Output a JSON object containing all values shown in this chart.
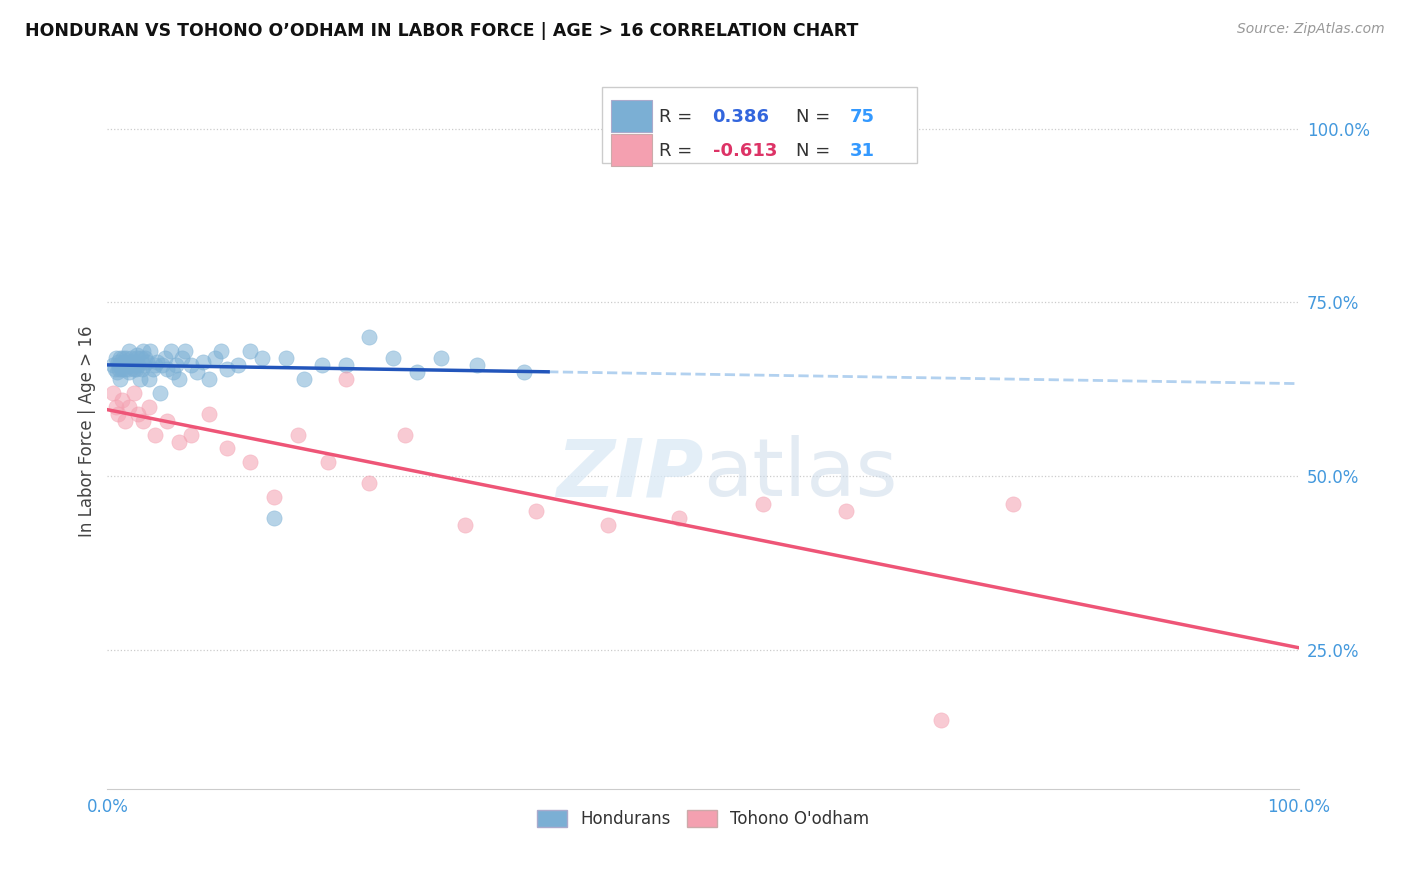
{
  "title": "HONDURAN VS TOHONO O’ODHAM IN LABOR FORCE | AGE > 16 CORRELATION CHART",
  "source": "Source: ZipAtlas.com",
  "ylabel": "In Labor Force | Age > 16",
  "R_honduran": 0.386,
  "N_honduran": 75,
  "R_tohono": -0.613,
  "N_tohono": 31,
  "color_honduran": "#7BAFD4",
  "color_tohono": "#F4A0B0",
  "color_line_honduran": "#2255BB",
  "color_line_tohono": "#EE5577",
  "color_dashed_line": "#AACCEE",
  "legend_label_honduran": "Hondurans",
  "legend_label_tohono": "Tohono O'odham",
  "bg_color": "#FFFFFF",
  "grid_color": "#CCCCCC",
  "honduran_x": [
    0.005,
    0.006,
    0.007,
    0.008,
    0.009,
    0.01,
    0.01,
    0.011,
    0.011,
    0.012,
    0.012,
    0.013,
    0.013,
    0.014,
    0.015,
    0.015,
    0.016,
    0.016,
    0.017,
    0.018,
    0.018,
    0.019,
    0.02,
    0.02,
    0.021,
    0.022,
    0.022,
    0.023,
    0.024,
    0.025,
    0.025,
    0.026,
    0.027,
    0.028,
    0.029,
    0.03,
    0.031,
    0.032,
    0.033,
    0.035,
    0.036,
    0.038,
    0.04,
    0.042,
    0.044,
    0.046,
    0.048,
    0.05,
    0.053,
    0.055,
    0.058,
    0.06,
    0.063,
    0.065,
    0.07,
    0.075,
    0.08,
    0.085,
    0.09,
    0.095,
    0.1,
    0.11,
    0.12,
    0.13,
    0.14,
    0.15,
    0.165,
    0.18,
    0.2,
    0.22,
    0.24,
    0.26,
    0.28,
    0.31,
    0.35
  ],
  "honduran_y": [
    0.66,
    0.655,
    0.67,
    0.65,
    0.665,
    0.66,
    0.655,
    0.67,
    0.64,
    0.66,
    0.655,
    0.66,
    0.67,
    0.665,
    0.66,
    0.655,
    0.66,
    0.67,
    0.655,
    0.68,
    0.65,
    0.665,
    0.66,
    0.67,
    0.66,
    0.665,
    0.655,
    0.66,
    0.655,
    0.67,
    0.675,
    0.66,
    0.64,
    0.67,
    0.655,
    0.68,
    0.66,
    0.67,
    0.665,
    0.64,
    0.68,
    0.655,
    0.66,
    0.665,
    0.62,
    0.66,
    0.67,
    0.655,
    0.68,
    0.65,
    0.66,
    0.64,
    0.67,
    0.68,
    0.66,
    0.65,
    0.665,
    0.64,
    0.67,
    0.68,
    0.655,
    0.66,
    0.68,
    0.67,
    0.44,
    0.67,
    0.64,
    0.66,
    0.66,
    0.7,
    0.67,
    0.65,
    0.67,
    0.66,
    0.65
  ],
  "tohono_x": [
    0.005,
    0.007,
    0.009,
    0.012,
    0.015,
    0.018,
    0.022,
    0.026,
    0.03,
    0.035,
    0.04,
    0.05,
    0.06,
    0.07,
    0.085,
    0.1,
    0.12,
    0.14,
    0.16,
    0.185,
    0.2,
    0.22,
    0.25,
    0.3,
    0.36,
    0.42,
    0.48,
    0.55,
    0.62,
    0.7,
    0.76
  ],
  "tohono_y": [
    0.62,
    0.6,
    0.59,
    0.61,
    0.58,
    0.6,
    0.62,
    0.59,
    0.58,
    0.6,
    0.56,
    0.58,
    0.55,
    0.56,
    0.59,
    0.54,
    0.52,
    0.47,
    0.56,
    0.52,
    0.64,
    0.49,
    0.56,
    0.43,
    0.45,
    0.43,
    0.44,
    0.46,
    0.45,
    0.15,
    0.46
  ],
  "xlim": [
    0.0,
    1.0
  ],
  "ylim": [
    0.05,
    1.08
  ],
  "yticks": [
    0.25,
    0.5,
    0.75,
    1.0
  ],
  "ytick_labels": [
    "25.0%",
    "50.0%",
    "75.0%",
    "100.0%"
  ]
}
